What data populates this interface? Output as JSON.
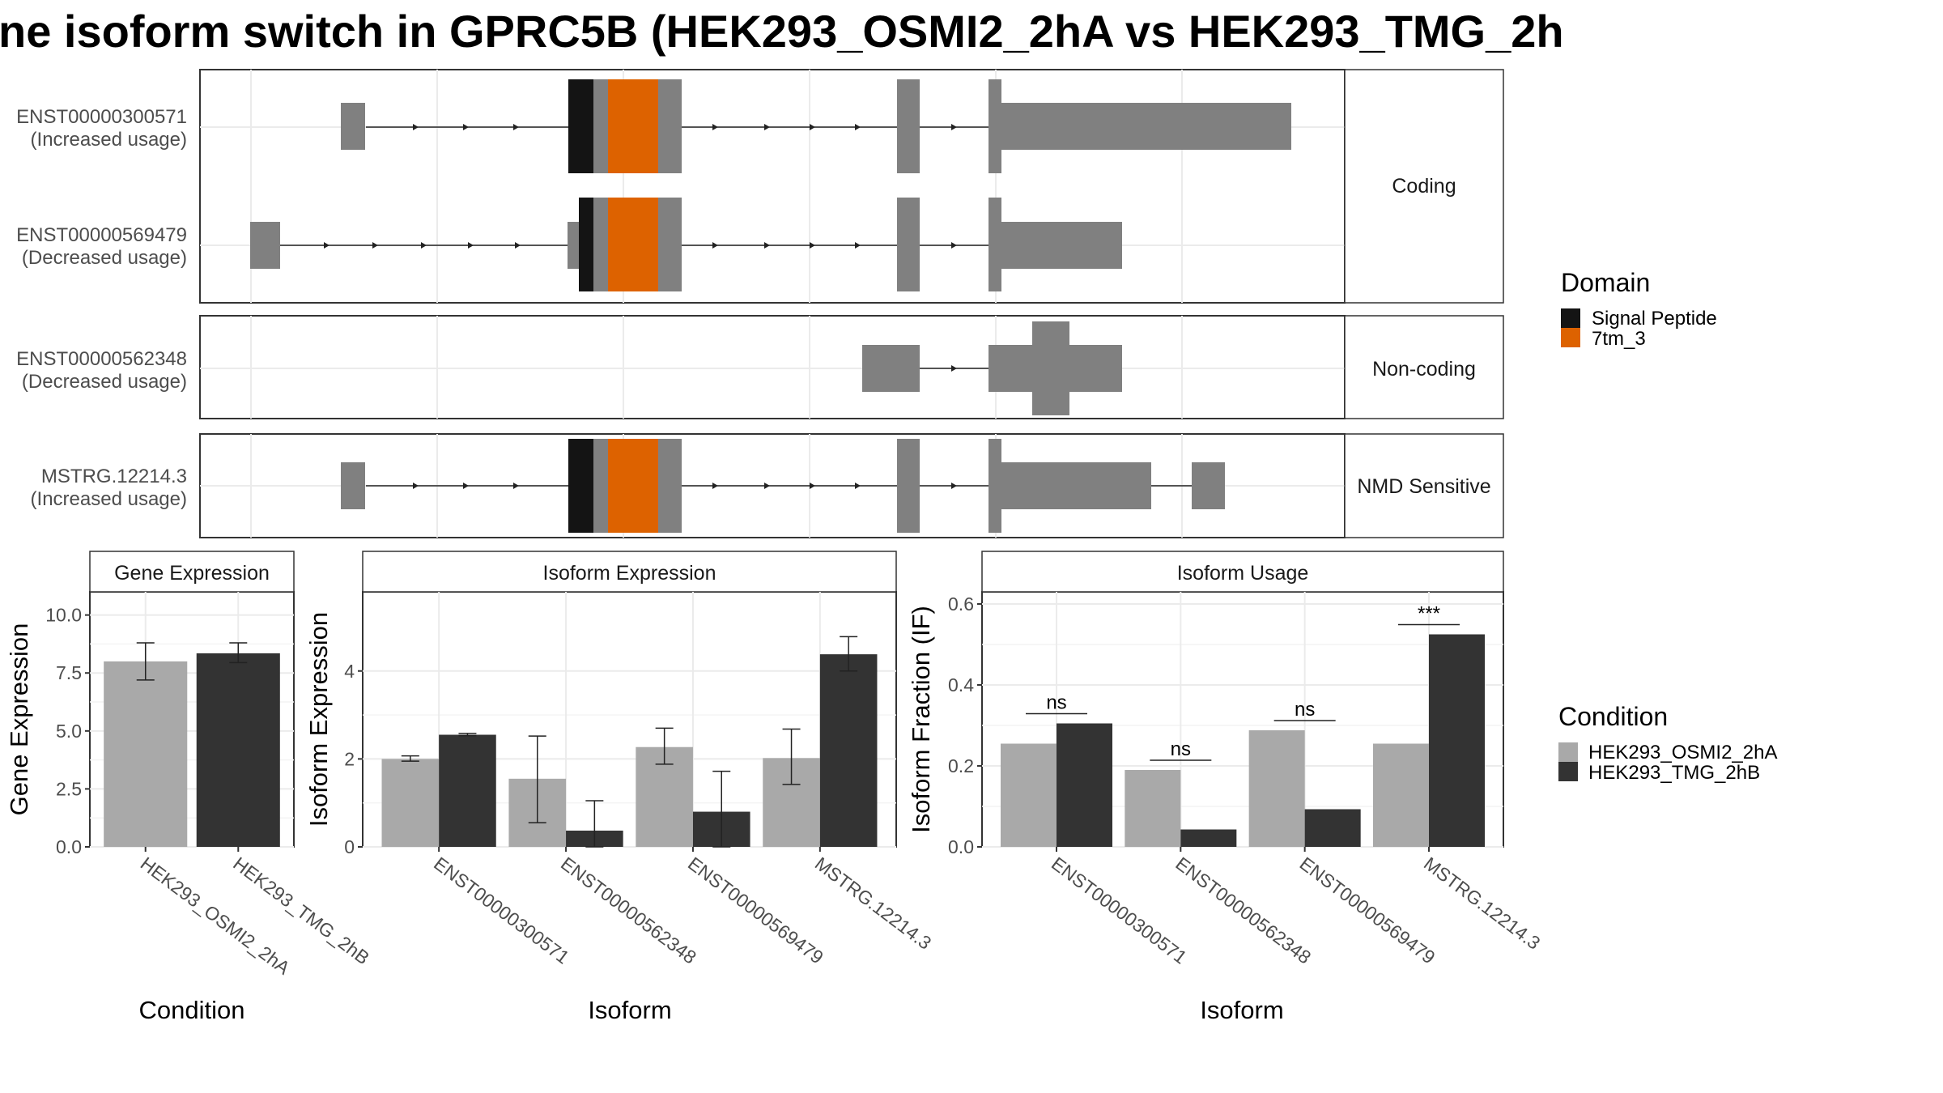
{
  "title": "ne isoform switch in GPRC5B (HEK293_OSMI2_2hA vs HEK293_TMG_2h",
  "colors": {
    "exon": "#808080",
    "signal_peptide": "#141414",
    "domain_7tm_3": "#dd6200",
    "cond_a": "#a9a9a9",
    "cond_b": "#333333",
    "strip_bg": "#ffffff",
    "grid": "#ebebeb"
  },
  "structure": {
    "facets": [
      {
        "label": "Coding",
        "rows": [
          {
            "line1": "ENST00000300571",
            "line2": "(Increased usage)"
          },
          {
            "line1": "ENST00000569479",
            "line2": "(Decreased usage)"
          }
        ]
      },
      {
        "label": "Non-coding",
        "rows": [
          {
            "line1": "ENST00000562348",
            "line2": "(Decreased usage)"
          }
        ]
      },
      {
        "label": "NMD Sensitive",
        "rows": [
          {
            "line1": "MSTRG.12214.3",
            "line2": "(Increased usage)"
          }
        ]
      }
    ],
    "legend": {
      "title": "Domain",
      "items": [
        {
          "label": "Signal Peptide",
          "color": "#141414"
        },
        {
          "label": "7tm_3",
          "color": "#dd6200"
        }
      ]
    }
  },
  "chart_data": [
    {
      "type": "bar",
      "title": "Gene Expression",
      "xlabel": "Condition",
      "ylabel": "Gene Expression",
      "categories": [
        "HEK293_OSMI2_2hA",
        "HEK293_TMG_2hB"
      ],
      "values": [
        8.0,
        8.35
      ],
      "errors": [
        [
          7.2,
          8.8
        ],
        [
          7.95,
          8.8
        ]
      ],
      "yticks": [
        "0.0",
        "2.5",
        "5.0",
        "7.5",
        "10.0"
      ],
      "ylim": [
        0,
        11
      ]
    },
    {
      "type": "bar",
      "title": "Isoform Expression",
      "xlabel": "Isoform",
      "ylabel": "Isoform Expression",
      "categories": [
        "ENST00000300571",
        "ENST00000562348",
        "ENST00000569479",
        "MSTRG.12214.3"
      ],
      "series": [
        {
          "name": "HEK293_OSMI2_2hA",
          "values": [
            2.0,
            1.55,
            2.27,
            2.02
          ],
          "errors": [
            [
              1.95,
              2.07
            ],
            [
              0.55,
              2.52
            ],
            [
              1.88,
              2.7
            ],
            [
              1.42,
              2.68
            ]
          ]
        },
        {
          "name": "HEK293_TMG_2hB",
          "values": [
            2.55,
            0.37,
            0.8,
            4.38
          ],
          "errors": [
            [
              2.53,
              2.58
            ],
            [
              0.0,
              1.05
            ],
            [
              0.0,
              1.72
            ],
            [
              4.0,
              4.78
            ]
          ]
        }
      ],
      "yticks": [
        "0",
        "2",
        "4"
      ],
      "ylim": [
        0,
        5.8
      ]
    },
    {
      "type": "bar",
      "title": "Isoform Usage",
      "xlabel": "Isoform",
      "ylabel": "Isoform Fraction (IF)",
      "categories": [
        "ENST00000300571",
        "ENST00000562348",
        "ENST00000569479",
        "MSTRG.12214.3"
      ],
      "series": [
        {
          "name": "HEK293_OSMI2_2hA",
          "values": [
            0.255,
            0.19,
            0.288,
            0.255
          ]
        },
        {
          "name": "HEK293_TMG_2hB",
          "values": [
            0.305,
            0.043,
            0.093,
            0.525
          ]
        }
      ],
      "significance": [
        "ns",
        "ns",
        "ns",
        "***"
      ],
      "yticks": [
        "0.0",
        "0.2",
        "0.4",
        "0.6"
      ],
      "ylim": [
        0,
        0.63
      ]
    }
  ],
  "condition_legend": {
    "title": "Condition",
    "items": [
      {
        "label": "HEK293_OSMI2_2hA",
        "color": "#a9a9a9"
      },
      {
        "label": "HEK293_TMG_2hB",
        "color": "#333333"
      }
    ]
  }
}
